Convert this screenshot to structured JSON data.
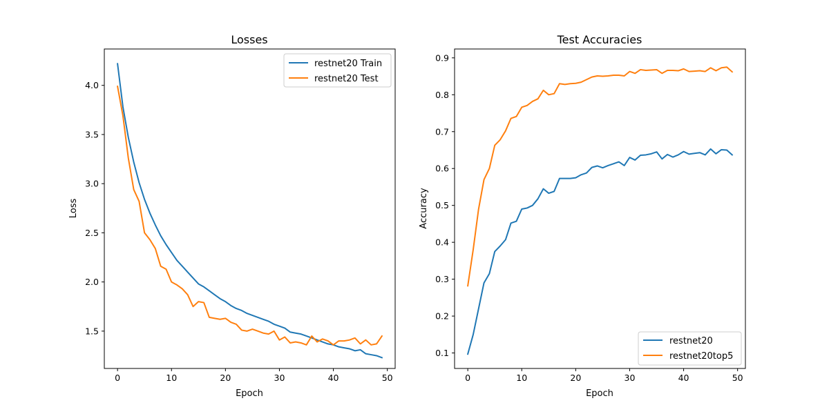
{
  "chart_data": [
    {
      "type": "line",
      "title": "Losses",
      "xlabel": "Epoch",
      "ylabel": "Loss",
      "xlim": [
        -2.45,
        51.45
      ],
      "ylim": [
        1.12,
        4.37
      ],
      "xticks": [
        0,
        10,
        20,
        30,
        40,
        50
      ],
      "yticks": [
        1.5,
        2.0,
        2.5,
        3.0,
        3.5,
        4.0
      ],
      "ytick_labels": [
        "1.5",
        "2.0",
        "2.5",
        "3.0",
        "3.5",
        "4.0"
      ],
      "legend_position": "top-right",
      "x": [
        0,
        1,
        2,
        3,
        4,
        5,
        6,
        7,
        8,
        9,
        10,
        11,
        12,
        13,
        14,
        15,
        16,
        17,
        18,
        19,
        20,
        21,
        22,
        23,
        24,
        25,
        26,
        27,
        28,
        29,
        30,
        31,
        32,
        33,
        34,
        35,
        36,
        37,
        38,
        39,
        40,
        41,
        42,
        43,
        44,
        45,
        46,
        47,
        48,
        49
      ],
      "series": [
        {
          "name": "restnet20 Train",
          "color": "#1f77b4",
          "values": [
            4.22,
            3.78,
            3.47,
            3.22,
            3.01,
            2.84,
            2.7,
            2.58,
            2.47,
            2.38,
            2.3,
            2.22,
            2.16,
            2.1,
            2.04,
            1.98,
            1.95,
            1.91,
            1.87,
            1.83,
            1.8,
            1.76,
            1.73,
            1.71,
            1.68,
            1.66,
            1.64,
            1.62,
            1.6,
            1.57,
            1.55,
            1.53,
            1.49,
            1.48,
            1.47,
            1.45,
            1.43,
            1.41,
            1.39,
            1.37,
            1.36,
            1.34,
            1.33,
            1.32,
            1.3,
            1.31,
            1.27,
            1.26,
            1.25,
            1.23
          ]
        },
        {
          "name": "restnet20 Test",
          "color": "#ff7f0e",
          "values": [
            3.99,
            3.69,
            3.26,
            2.94,
            2.82,
            2.5,
            2.43,
            2.34,
            2.16,
            2.13,
            2.0,
            1.97,
            1.93,
            1.87,
            1.75,
            1.8,
            1.79,
            1.64,
            1.63,
            1.62,
            1.63,
            1.59,
            1.57,
            1.51,
            1.5,
            1.52,
            1.5,
            1.48,
            1.47,
            1.5,
            1.41,
            1.44,
            1.38,
            1.39,
            1.38,
            1.36,
            1.45,
            1.39,
            1.42,
            1.4,
            1.36,
            1.4,
            1.4,
            1.41,
            1.43,
            1.37,
            1.41,
            1.36,
            1.37,
            1.45
          ]
        }
      ]
    },
    {
      "type": "line",
      "title": "Test Accuracies",
      "xlabel": "Epoch",
      "ylabel": "Accuracy",
      "xlim": [
        -2.45,
        51.45
      ],
      "ylim": [
        0.058,
        0.924
      ],
      "xticks": [
        0,
        10,
        20,
        30,
        40,
        50
      ],
      "yticks": [
        0.1,
        0.2,
        0.3,
        0.4,
        0.5,
        0.6,
        0.7,
        0.8,
        0.9
      ],
      "ytick_labels": [
        "0.1",
        "0.2",
        "0.3",
        "0.4",
        "0.5",
        "0.6",
        "0.7",
        "0.8",
        "0.9"
      ],
      "legend_position": "bottom-right",
      "x": [
        0,
        1,
        2,
        3,
        4,
        5,
        6,
        7,
        8,
        9,
        10,
        11,
        12,
        13,
        14,
        15,
        16,
        17,
        18,
        19,
        20,
        21,
        22,
        23,
        24,
        25,
        26,
        27,
        28,
        29,
        30,
        31,
        32,
        33,
        34,
        35,
        36,
        37,
        38,
        39,
        40,
        41,
        42,
        43,
        44,
        45,
        46,
        47,
        48,
        49
      ],
      "series": [
        {
          "name": "restnet20",
          "color": "#1f77b4",
          "values": [
            0.097,
            0.15,
            0.22,
            0.29,
            0.315,
            0.375,
            0.39,
            0.407,
            0.452,
            0.457,
            0.49,
            0.493,
            0.5,
            0.518,
            0.545,
            0.533,
            0.538,
            0.573,
            0.573,
            0.573,
            0.575,
            0.583,
            0.588,
            0.603,
            0.607,
            0.602,
            0.608,
            0.613,
            0.618,
            0.608,
            0.63,
            0.623,
            0.636,
            0.637,
            0.64,
            0.645,
            0.626,
            0.638,
            0.631,
            0.637,
            0.646,
            0.639,
            0.641,
            0.643,
            0.637,
            0.653,
            0.64,
            0.651,
            0.65,
            0.637
          ]
        },
        {
          "name": "restnet20top5",
          "color": "#ff7f0e",
          "values": [
            0.282,
            0.38,
            0.49,
            0.57,
            0.6,
            0.663,
            0.678,
            0.702,
            0.736,
            0.741,
            0.766,
            0.771,
            0.782,
            0.789,
            0.812,
            0.8,
            0.803,
            0.83,
            0.828,
            0.83,
            0.831,
            0.834,
            0.841,
            0.848,
            0.851,
            0.85,
            0.851,
            0.853,
            0.853,
            0.851,
            0.863,
            0.858,
            0.868,
            0.866,
            0.867,
            0.868,
            0.858,
            0.866,
            0.866,
            0.865,
            0.87,
            0.863,
            0.864,
            0.865,
            0.863,
            0.873,
            0.865,
            0.873,
            0.875,
            0.862
          ]
        }
      ]
    }
  ]
}
